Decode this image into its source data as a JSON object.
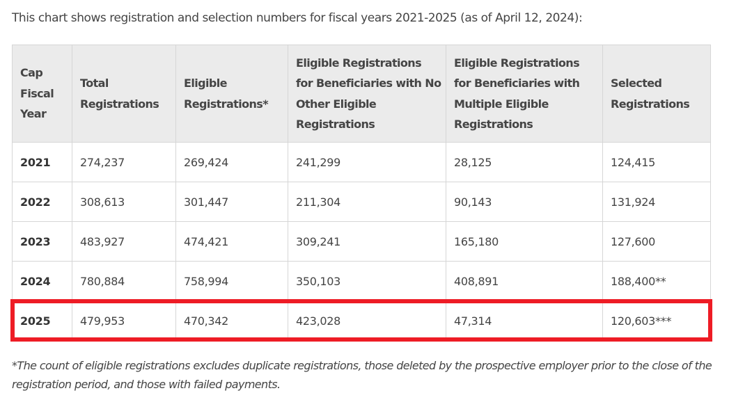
{
  "intro_text": "This chart shows registration and selection numbers for fiscal years 2021-2025 (as of April 12, 2024):",
  "table": {
    "headers": [
      "Cap Fiscal Year",
      "Total Registrations",
      "Eligible Registrations*",
      "Eligible Registrations for Beneficiaries with No Other Eligible Registrations",
      "Eligible Registrations for Beneficiaries with Multiple Eligible Registrations",
      "Selected Registrations"
    ],
    "rows": [
      [
        "2021",
        "274,237",
        "269,424",
        "241,299",
        "28,125",
        "124,415"
      ],
      [
        "2022",
        "308,613",
        "301,447",
        "211,304",
        "90,143",
        "131,924"
      ],
      [
        "2023",
        "483,927",
        "474,421",
        "309,241",
        "165,180",
        "127,600"
      ],
      [
        "2024",
        "780,884",
        "758,994",
        "350,103",
        "408,891",
        "188,400**"
      ],
      [
        "2025",
        "479,953",
        "470,342",
        "423,028",
        "47,314",
        "120,603***"
      ]
    ]
  },
  "footnote": "*The count of eligible registrations excludes duplicate registrations, those deleted by the prospective employer prior to the close of the registration period, and those with failed payments.",
  "colors": {
    "header_bg": "#ebebeb",
    "border": "#d6d6d6",
    "highlight": "#ee1c25"
  }
}
